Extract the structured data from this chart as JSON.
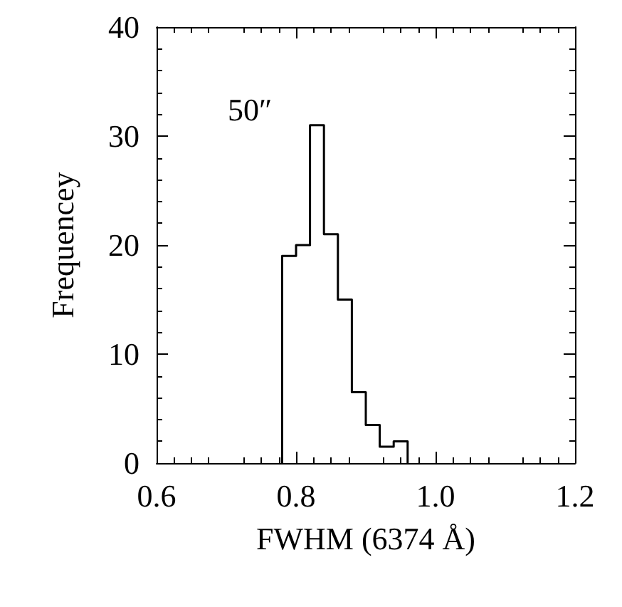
{
  "chart_data": {
    "type": "histogram",
    "xlabel": "FWHM (6374 Å)",
    "ylabel": "Frequencey",
    "annotations": [
      "50″"
    ],
    "bins": [
      0.78,
      0.8,
      0.82,
      0.84,
      0.86,
      0.88,
      0.9,
      0.92,
      0.94,
      0.96
    ],
    "values": [
      19,
      20,
      31,
      21,
      15,
      6.5,
      3.5,
      1.5,
      2
    ],
    "color": "#000000",
    "xlim": [
      0.6,
      1.2
    ],
    "xticks": [
      0.6,
      0.8,
      {
        "value": 1,
        "label": "1.0"
      },
      1.2
    ],
    "ylim": [
      0,
      40
    ],
    "yticks": [
      0,
      10,
      20,
      30,
      40
    ],
    "grid": false
  }
}
